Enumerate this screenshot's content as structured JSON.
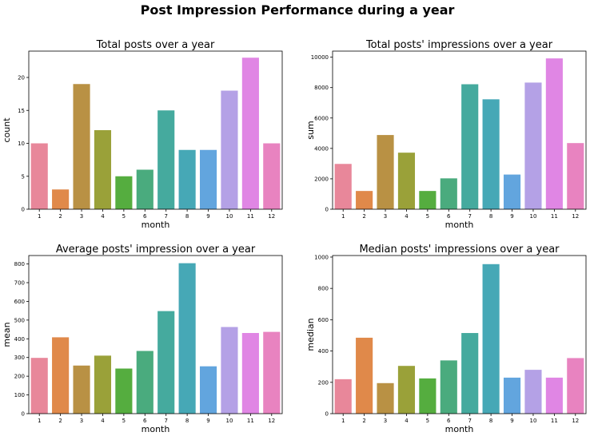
{
  "figure_title": "Post Impression Performance during a year",
  "palette": [
    "#e8879a",
    "#e0894a",
    "#b99144",
    "#9aa139",
    "#55ad3f",
    "#4aab7e",
    "#45aa9e",
    "#46a8b6",
    "#62a5de",
    "#b4a1e6",
    "#e086e4",
    "#e883c0"
  ],
  "chart_data": [
    {
      "type": "bar",
      "title": "Total posts over a year",
      "xlabel": "month",
      "ylabel": "count",
      "categories": [
        "1",
        "2",
        "3",
        "4",
        "5",
        "6",
        "7",
        "8",
        "9",
        "10",
        "11",
        "12"
      ],
      "values": [
        10,
        3,
        19,
        12,
        5,
        6,
        15,
        9,
        9,
        18,
        23,
        10
      ],
      "ylim": [
        0,
        24
      ],
      "yticks": [
        0,
        5,
        10,
        15,
        20
      ],
      "grid": false
    },
    {
      "type": "bar",
      "title": "Total posts' impressions over a year",
      "xlabel": "month",
      "ylabel": "sum",
      "categories": [
        "1",
        "2",
        "3",
        "4",
        "5",
        "6",
        "7",
        "8",
        "9",
        "10",
        "11",
        "12"
      ],
      "values": [
        2980,
        1200,
        4880,
        3720,
        1200,
        2030,
        8220,
        7230,
        2280,
        8330,
        9920,
        4350
      ],
      "ylim": [
        0,
        10400
      ],
      "yticks": [
        0,
        2000,
        4000,
        6000,
        8000,
        10000
      ],
      "grid": false
    },
    {
      "type": "bar",
      "title": "Average posts' impression over a year",
      "xlabel": "month",
      "ylabel": "mean",
      "categories": [
        "1",
        "2",
        "3",
        "4",
        "5",
        "6",
        "7",
        "8",
        "9",
        "10",
        "11",
        "12"
      ],
      "values": [
        298,
        408,
        257,
        310,
        241,
        335,
        548,
        804,
        253,
        463,
        431,
        437
      ],
      "ylim": [
        0,
        845
      ],
      "yticks": [
        0,
        100,
        200,
        300,
        400,
        500,
        600,
        700,
        800
      ],
      "grid": false
    },
    {
      "type": "bar",
      "title": "Median posts' impressions over a year",
      "xlabel": "month",
      "ylabel": "median",
      "categories": [
        "1",
        "2",
        "3",
        "4",
        "5",
        "6",
        "7",
        "8",
        "9",
        "10",
        "11",
        "12"
      ],
      "values": [
        220,
        485,
        195,
        305,
        225,
        340,
        515,
        955,
        230,
        280,
        230,
        355
      ],
      "ylim": [
        0,
        1010
      ],
      "yticks": [
        0,
        200,
        400,
        600,
        800,
        1000
      ],
      "grid": false
    }
  ]
}
